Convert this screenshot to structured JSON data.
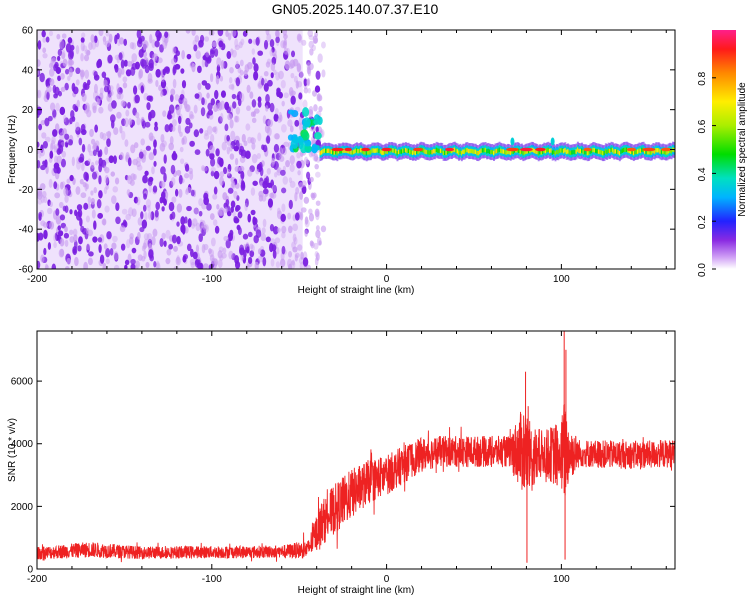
{
  "title": "GN05.2025.140.07.37.E10",
  "colors": {
    "axis": "#000000",
    "snr_line": "#ee2222",
    "spectrogram_noise": "#7a1ee0",
    "background": "#ffffff"
  },
  "colorbar": {
    "label": "Normalized spectral amplitude",
    "range": [
      0.0,
      1.0
    ],
    "ticks": [
      "0.0",
      "0.2",
      "0.4",
      "0.6",
      "0.8"
    ],
    "tick_values": [
      0.0,
      0.2,
      0.4,
      0.6,
      0.8
    ],
    "colormap": "rainbow (violet to red)"
  },
  "chart_data": [
    {
      "type": "heatmap",
      "title": "GN05.2025.140.07.37.E10",
      "xlabel": "Height of straight line (km)",
      "ylabel": "Frequency (Hz)",
      "xlim": [
        -200,
        165
      ],
      "ylim": [
        -60,
        60
      ],
      "x_ticks": [
        -200,
        -100,
        0,
        100
      ],
      "x_tick_labels": [
        "-200",
        "-100",
        "0",
        "100"
      ],
      "y_ticks": [
        -60,
        -40,
        -20,
        0,
        20,
        40,
        60
      ],
      "y_tick_labels": [
        "-60",
        "-40",
        "-20",
        "0",
        "20",
        "40",
        "60"
      ],
      "regions": [
        {
          "description": "broadband noise",
          "x_range": [
            -200,
            -48
          ],
          "freq_range": [
            -60,
            60
          ],
          "amplitude": 0.1
        },
        {
          "description": "onset blobs",
          "x_range": [
            -55,
            -38
          ],
          "freq_range": [
            0,
            20
          ],
          "amplitude": 0.35
        },
        {
          "description": "narrow signal band",
          "x_range": [
            -38,
            165
          ],
          "freq_center": 0,
          "amplitude_min": 0.3,
          "amplitude_max": 0.95
        }
      ],
      "grid": false
    },
    {
      "type": "line",
      "xlabel": "Height of straight line (km)",
      "ylabel": "SNR (10 * v/v)",
      "xlim": [
        -200,
        165
      ],
      "ylim": [
        0,
        7600
      ],
      "x_ticks": [
        -200,
        -100,
        0,
        100
      ],
      "x_tick_labels": [
        "-200",
        "-100",
        "0",
        "100"
      ],
      "y_ticks": [
        0,
        2000,
        4000,
        6000
      ],
      "y_tick_labels": [
        "0",
        "2000",
        "4000",
        "6000"
      ],
      "series": [
        {
          "x": [
            -200,
            -170,
            -140,
            -110,
            -80,
            -60,
            -45,
            -38,
            -30,
            -20,
            -10,
            0,
            10,
            20,
            30,
            50,
            70,
            79,
            82,
            90,
            100,
            102,
            104,
            110,
            130,
            150,
            165
          ],
          "mean": [
            500,
            620,
            520,
            540,
            540,
            560,
            620,
            1400,
            1900,
            2400,
            2800,
            3000,
            3350,
            3650,
            3750,
            3750,
            3750,
            3800,
            3500,
            3700,
            3600,
            3800,
            3700,
            3700,
            3650,
            3650,
            3700
          ],
          "spread": [
            200,
            250,
            200,
            200,
            200,
            200,
            300,
            700,
            800,
            800,
            700,
            650,
            600,
            550,
            500,
            500,
            500,
            1500,
            1200,
            700,
            1200,
            1800,
            1000,
            450,
            450,
            450,
            450
          ],
          "min_values": [
            0,
            0,
            0,
            0,
            0,
            0,
            0,
            0,
            200,
            800,
            1500,
            1800,
            2400,
            2900,
            3100,
            3100,
            3000,
            200,
            2000,
            2800,
            1000,
            300,
            1500,
            3000,
            3000,
            3000,
            3000
          ],
          "max_values": [
            1000,
            1300,
            1000,
            1000,
            1000,
            1000,
            1200,
            2500,
            3000,
            3500,
            3800,
            4000,
            4200,
            4500,
            4500,
            4600,
            4700,
            6300,
            5000,
            4700,
            5600,
            7600,
            4900,
            4600,
            4600,
            4600,
            4600
          ]
        }
      ],
      "grid": false
    }
  ]
}
